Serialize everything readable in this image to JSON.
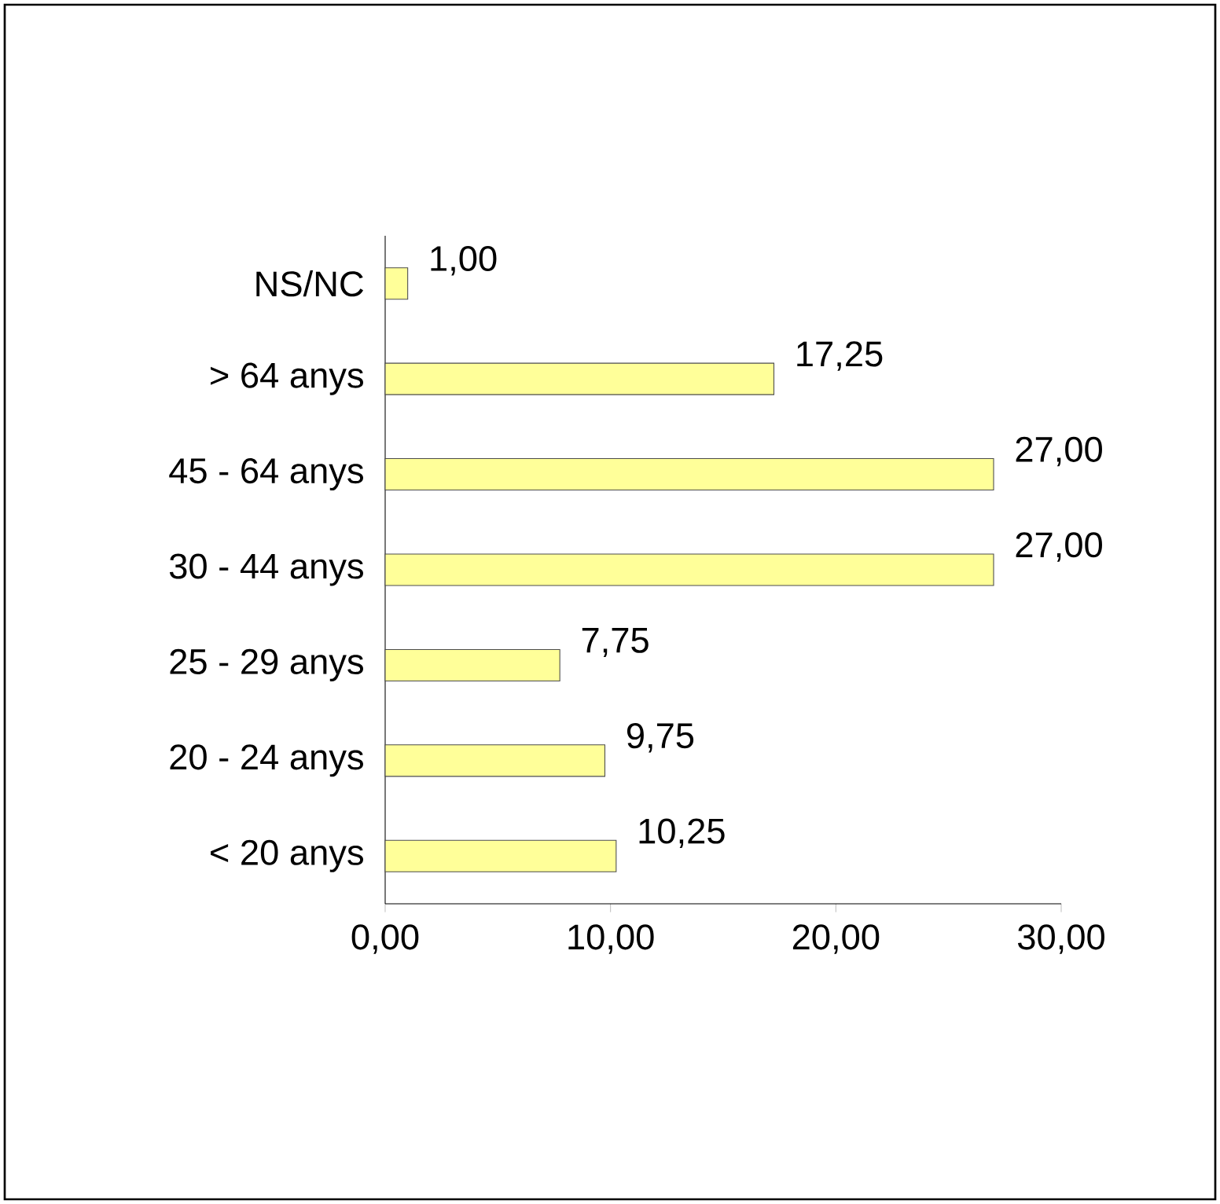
{
  "chart_data": {
    "type": "bar",
    "orientation": "horizontal",
    "categories": [
      "NS/NC",
      "> 64 anys",
      "45 - 64 anys",
      "30 - 44 anys",
      "25 - 29 anys",
      "20 - 24 anys",
      "< 20 anys"
    ],
    "values": [
      1.0,
      17.25,
      27.0,
      27.0,
      7.75,
      9.75,
      10.25
    ],
    "value_labels": [
      "1,00",
      "17,25",
      "27,00",
      "27,00",
      "7,75",
      "9,75",
      "10,25"
    ],
    "color": "#ffff99",
    "xlim": [
      0,
      30
    ],
    "xticks": [
      {
        "value": 0,
        "label": "0,00"
      },
      {
        "value": 10,
        "label": "10,00"
      },
      {
        "value": 20,
        "label": "20,00"
      },
      {
        "value": 30,
        "label": "30,00"
      }
    ],
    "grid": false
  }
}
